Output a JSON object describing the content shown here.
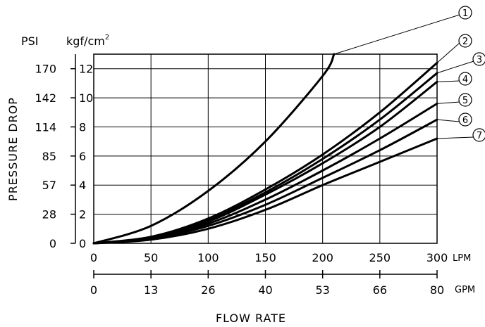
{
  "chart_data": {
    "type": "line",
    "xlabel": "FLOW RATE",
    "ylabel": "PRESSURE DROP",
    "x_primary": {
      "unit": "LPM",
      "range": [
        0,
        300
      ],
      "ticks": [
        0,
        50,
        100,
        150,
        200,
        250,
        300
      ]
    },
    "x_secondary": {
      "unit": "GPM",
      "tick_labels": [
        "0",
        "13",
        "26",
        "40",
        "53",
        "66",
        "80"
      ]
    },
    "y_primary": {
      "unit_base": "kgf/cm",
      "unit_sup": "2",
      "range": [
        0,
        13
      ],
      "ticks": [
        0,
        2,
        4,
        6,
        8,
        10,
        12
      ]
    },
    "y_secondary": {
      "unit": "PSI",
      "tick_labels": [
        "0",
        "28",
        "57",
        "85",
        "114",
        "142",
        "170"
      ]
    },
    "grid": true,
    "series": [
      {
        "name": "①",
        "x": [
          0,
          50,
          100,
          150,
          200,
          210
        ],
        "y": [
          0,
          1.2,
          3.6,
          7.0,
          11.5,
          13.0
        ]
      },
      {
        "name": "②",
        "x": [
          0,
          50,
          100,
          150,
          200,
          250,
          300
        ],
        "y": [
          0,
          0.45,
          1.7,
          3.7,
          6.1,
          9.0,
          12.4
        ]
      },
      {
        "name": "③",
        "x": [
          0,
          50,
          100,
          150,
          200,
          250,
          300
        ],
        "y": [
          0,
          0.42,
          1.6,
          3.5,
          5.8,
          8.5,
          11.7
        ]
      },
      {
        "name": "④",
        "x": [
          0,
          50,
          100,
          150,
          200,
          250,
          300
        ],
        "y": [
          0,
          0.4,
          1.5,
          3.35,
          5.5,
          8.0,
          11.1
        ]
      },
      {
        "name": "⑤",
        "x": [
          0,
          50,
          100,
          150,
          200,
          250,
          300
        ],
        "y": [
          0,
          0.35,
          1.35,
          3.0,
          5.0,
          7.2,
          9.6
        ]
      },
      {
        "name": "⑥",
        "x": [
          0,
          50,
          100,
          150,
          200,
          250,
          300
        ],
        "y": [
          0,
          0.3,
          1.2,
          2.65,
          4.5,
          6.4,
          8.5
        ]
      },
      {
        "name": "⑦",
        "x": [
          0,
          50,
          100,
          150,
          200,
          250,
          300
        ],
        "y": [
          0,
          0.25,
          1.0,
          2.3,
          4.0,
          5.6,
          7.2
        ]
      }
    ]
  }
}
